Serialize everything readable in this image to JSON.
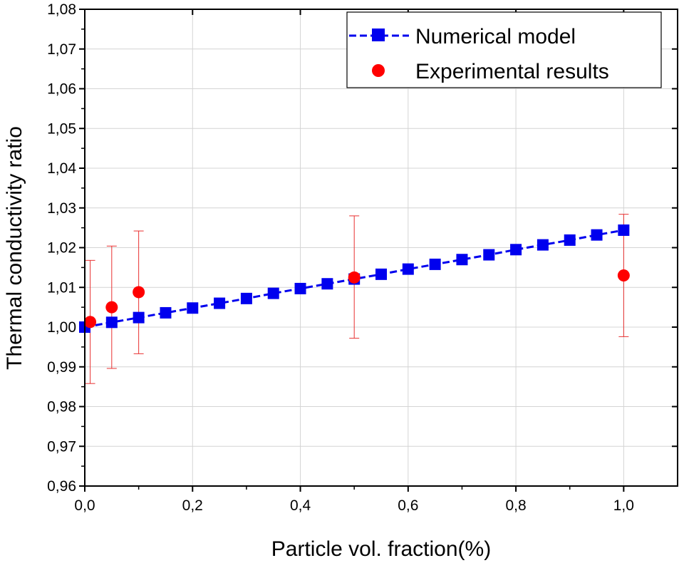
{
  "chart_data": {
    "type": "line",
    "xlabel": "Particle vol. fraction(%)",
    "ylabel": "Thermal conductivity ratio",
    "xlim": [
      0.0,
      1.1
    ],
    "ylim": [
      0.96,
      1.08
    ],
    "x_ticks": [
      0.0,
      0.2,
      0.4,
      0.6,
      0.8,
      1.0
    ],
    "x_tick_labels": [
      "0,0",
      "0,2",
      "0,4",
      "0,6",
      "0,8",
      "1,0"
    ],
    "y_ticks": [
      0.96,
      0.97,
      0.98,
      0.99,
      1.0,
      1.01,
      1.02,
      1.03,
      1.04,
      1.05,
      1.06,
      1.07,
      1.08
    ],
    "y_tick_labels": [
      "0,96",
      "0,97",
      "0,98",
      "0,99",
      "1,00",
      "1,01",
      "1,02",
      "1,03",
      "1,04",
      "1,05",
      "1,06",
      "1,07",
      "1,08"
    ],
    "grid": true,
    "legend_position": "top-right",
    "series": [
      {
        "name": "Numerical model",
        "style": "dashed-line-square-markers",
        "color": "#0000ee",
        "x": [
          0.0,
          0.05,
          0.1,
          0.15,
          0.2,
          0.25,
          0.3,
          0.35,
          0.4,
          0.45,
          0.5,
          0.55,
          0.6,
          0.65,
          0.7,
          0.75,
          0.8,
          0.85,
          0.9,
          0.95,
          1.0
        ],
        "y": [
          1.0,
          1.0012,
          1.0024,
          1.0036,
          1.0048,
          1.006,
          1.0072,
          1.0085,
          1.0097,
          1.0109,
          1.0121,
          1.0133,
          1.0146,
          1.0158,
          1.017,
          1.0182,
          1.0195,
          1.0207,
          1.0219,
          1.0232,
          1.0244
        ]
      },
      {
        "name": "Experimental results",
        "style": "circle-markers-with-error-bars",
        "color": "#ff0000",
        "error_bar_color": "#e83030",
        "x": [
          0.01,
          0.05,
          0.1,
          0.5,
          1.0
        ],
        "y": [
          1.0013,
          1.005,
          1.0088,
          1.0125,
          1.013
        ],
        "err_low": [
          0.9858,
          0.9896,
          0.9933,
          0.9972,
          0.9976
        ],
        "err_high": [
          1.0168,
          1.0204,
          1.0242,
          1.028,
          1.0284
        ]
      }
    ]
  }
}
